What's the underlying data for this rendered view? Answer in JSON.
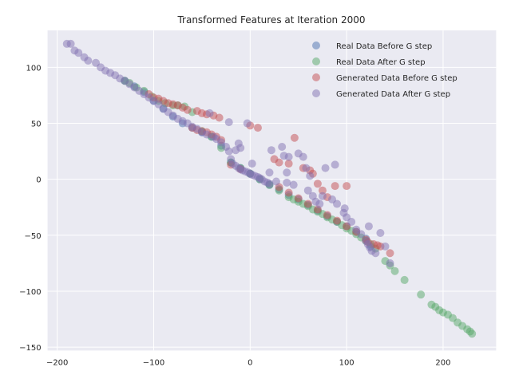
{
  "chart_data": {
    "type": "scatter",
    "title": "Transformed Features at Iteration 2000",
    "xlabel": "",
    "ylabel": "",
    "xlim": [
      -210,
      255
    ],
    "ylim": [
      -153,
      133
    ],
    "xticks": [
      -200,
      -100,
      0,
      100,
      200
    ],
    "yticks": [
      -150,
      -100,
      -50,
      0,
      50,
      100
    ],
    "xtick_labels": [
      "−200",
      "−100",
      "0",
      "100",
      "200"
    ],
    "ytick_labels": [
      "−150",
      "−100",
      "−50",
      "0",
      "50",
      "100"
    ],
    "grid": true,
    "legend_position": "top-right",
    "series": [
      {
        "name": "Real Data Before G step",
        "color": "#4c72b0",
        "points": [
          [
            -130,
            88
          ],
          [
            -120,
            83
          ],
          [
            -110,
            78
          ],
          [
            -100,
            70
          ],
          [
            -90,
            63
          ],
          [
            -80,
            56
          ],
          [
            -70,
            50
          ],
          [
            -60,
            46
          ],
          [
            -50,
            42
          ],
          [
            -40,
            38
          ],
          [
            -30,
            30
          ],
          [
            -20,
            15
          ],
          [
            -10,
            10
          ],
          [
            0,
            5
          ],
          [
            10,
            0
          ],
          [
            20,
            -5
          ],
          [
            30,
            -9
          ],
          [
            40,
            -14
          ],
          [
            50,
            -18
          ],
          [
            60,
            -23
          ],
          [
            70,
            -28
          ],
          [
            80,
            -33
          ],
          [
            90,
            -38
          ],
          [
            100,
            -42
          ],
          [
            110,
            -47
          ],
          [
            120,
            -53
          ],
          [
            125,
            -60
          ]
        ]
      },
      {
        "name": "Real Data After G step",
        "color": "#55a868",
        "points": [
          [
            -130,
            88
          ],
          [
            -125,
            86
          ],
          [
            -118,
            82
          ],
          [
            -110,
            79
          ],
          [
            -102,
            74
          ],
          [
            -95,
            70
          ],
          [
            -88,
            68
          ],
          [
            -80,
            66
          ],
          [
            -75,
            66
          ],
          [
            -68,
            65
          ],
          [
            -60,
            60
          ],
          [
            -50,
            43
          ],
          [
            -40,
            38
          ],
          [
            -30,
            28
          ],
          [
            -20,
            15
          ],
          [
            -10,
            10
          ],
          [
            0,
            5
          ],
          [
            10,
            0
          ],
          [
            20,
            -5
          ],
          [
            30,
            -10
          ],
          [
            40,
            -16
          ],
          [
            45,
            -18
          ],
          [
            50,
            -20
          ],
          [
            55,
            -22
          ],
          [
            60,
            -24
          ],
          [
            65,
            -27
          ],
          [
            70,
            -29
          ],
          [
            75,
            -31
          ],
          [
            80,
            -34
          ],
          [
            85,
            -36
          ],
          [
            90,
            -38
          ],
          [
            95,
            -41
          ],
          [
            100,
            -44
          ],
          [
            105,
            -46
          ],
          [
            110,
            -49
          ],
          [
            115,
            -52
          ],
          [
            120,
            -55
          ],
          [
            125,
            -58
          ],
          [
            130,
            -62
          ],
          [
            140,
            -73
          ],
          [
            145,
            -77
          ],
          [
            150,
            -82
          ],
          [
            160,
            -90
          ],
          [
            177,
            -103
          ],
          [
            188,
            -112
          ],
          [
            192,
            -114
          ],
          [
            196,
            -117
          ],
          [
            200,
            -119
          ],
          [
            205,
            -121
          ],
          [
            210,
            -124
          ],
          [
            215,
            -128
          ],
          [
            220,
            -131
          ],
          [
            225,
            -134
          ],
          [
            228,
            -136
          ],
          [
            230,
            -138
          ]
        ]
      },
      {
        "name": "Generated Data Before G step",
        "color": "#c44e52",
        "points": [
          [
            -105,
            76
          ],
          [
            -100,
            73
          ],
          [
            -95,
            72
          ],
          [
            -90,
            70
          ],
          [
            -85,
            68
          ],
          [
            -80,
            67
          ],
          [
            -75,
            66
          ],
          [
            -70,
            64
          ],
          [
            -65,
            62
          ],
          [
            -55,
            61
          ],
          [
            -50,
            59
          ],
          [
            -45,
            58
          ],
          [
            -38,
            57
          ],
          [
            -32,
            55
          ],
          [
            -60,
            46
          ],
          [
            -55,
            44
          ],
          [
            -50,
            43
          ],
          [
            -45,
            42
          ],
          [
            -40,
            40
          ],
          [
            -35,
            38
          ],
          [
            -30,
            35
          ],
          [
            -20,
            13
          ],
          [
            -10,
            9
          ],
          [
            0,
            48
          ],
          [
            8,
            46
          ],
          [
            25,
            18
          ],
          [
            30,
            15
          ],
          [
            40,
            14
          ],
          [
            46,
            37
          ],
          [
            55,
            10
          ],
          [
            62,
            8
          ],
          [
            65,
            5
          ],
          [
            70,
            -4
          ],
          [
            75,
            -10
          ],
          [
            80,
            -16
          ],
          [
            88,
            -6
          ],
          [
            100,
            -6
          ],
          [
            30,
            -7
          ],
          [
            40,
            -12
          ],
          [
            50,
            -17
          ],
          [
            60,
            -22
          ],
          [
            70,
            -27
          ],
          [
            80,
            -32
          ],
          [
            90,
            -37
          ],
          [
            100,
            -42
          ],
          [
            110,
            -47
          ],
          [
            120,
            -54
          ],
          [
            122,
            -56
          ],
          [
            128,
            -58
          ],
          [
            132,
            -59
          ],
          [
            135,
            -60
          ],
          [
            145,
            -66
          ]
        ]
      },
      {
        "name": "Generated Data After G step",
        "color": "#8172b2",
        "points": [
          [
            -190,
            121
          ],
          [
            -186,
            121
          ],
          [
            -182,
            115
          ],
          [
            -178,
            113
          ],
          [
            -172,
            109
          ],
          [
            -168,
            106
          ],
          [
            -160,
            104
          ],
          [
            -155,
            100
          ],
          [
            -150,
            97
          ],
          [
            -145,
            95
          ],
          [
            -140,
            93
          ],
          [
            -135,
            90
          ],
          [
            -130,
            88
          ],
          [
            -125,
            85
          ],
          [
            -120,
            82
          ],
          [
            -115,
            79
          ],
          [
            -110,
            76
          ],
          [
            -105,
            73
          ],
          [
            -100,
            70
          ],
          [
            -95,
            67
          ],
          [
            -90,
            63
          ],
          [
            -85,
            60
          ],
          [
            -80,
            57
          ],
          [
            -75,
            54
          ],
          [
            -70,
            52
          ],
          [
            -65,
            50
          ],
          [
            -60,
            47
          ],
          [
            -55,
            45
          ],
          [
            -50,
            42
          ],
          [
            -45,
            40
          ],
          [
            -42,
            59
          ],
          [
            -38,
            38
          ],
          [
            -35,
            36
          ],
          [
            -30,
            33
          ],
          [
            -25,
            29
          ],
          [
            -22,
            25
          ],
          [
            -20,
            18
          ],
          [
            -18,
            14
          ],
          [
            -15,
            12
          ],
          [
            -12,
            10
          ],
          [
            -10,
            9
          ],
          [
            -8,
            8
          ],
          [
            -5,
            7
          ],
          [
            -2,
            6
          ],
          [
            0,
            5
          ],
          [
            2,
            4
          ],
          [
            5,
            3
          ],
          [
            8,
            2
          ],
          [
            10,
            1
          ],
          [
            12,
            0
          ],
          [
            15,
            -2
          ],
          [
            18,
            -3
          ],
          [
            20,
            -4
          ],
          [
            -22,
            51
          ],
          [
            -15,
            26
          ],
          [
            -10,
            28
          ],
          [
            -12,
            32
          ],
          [
            -3,
            50
          ],
          [
            2,
            14
          ],
          [
            20,
            6
          ],
          [
            22,
            26
          ],
          [
            27,
            -2
          ],
          [
            33,
            29
          ],
          [
            35,
            21
          ],
          [
            38,
            6
          ],
          [
            38,
            -3
          ],
          [
            40,
            20
          ],
          [
            45,
            -5
          ],
          [
            50,
            23
          ],
          [
            55,
            20
          ],
          [
            58,
            10
          ],
          [
            60,
            -10
          ],
          [
            62,
            3
          ],
          [
            65,
            -15
          ],
          [
            68,
            -20
          ],
          [
            72,
            -22
          ],
          [
            75,
            -15
          ],
          [
            78,
            10
          ],
          [
            85,
            -18
          ],
          [
            88,
            13
          ],
          [
            90,
            -22
          ],
          [
            97,
            -30
          ],
          [
            100,
            -34
          ],
          [
            105,
            -38
          ],
          [
            110,
            -45
          ],
          [
            115,
            -49
          ],
          [
            120,
            -55
          ],
          [
            122,
            -58
          ],
          [
            124,
            -61
          ],
          [
            126,
            -64
          ],
          [
            130,
            -66
          ],
          [
            135,
            -48
          ],
          [
            140,
            -60
          ],
          [
            145,
            -75
          ],
          [
            123,
            -42
          ],
          [
            98,
            -26
          ]
        ]
      }
    ]
  }
}
